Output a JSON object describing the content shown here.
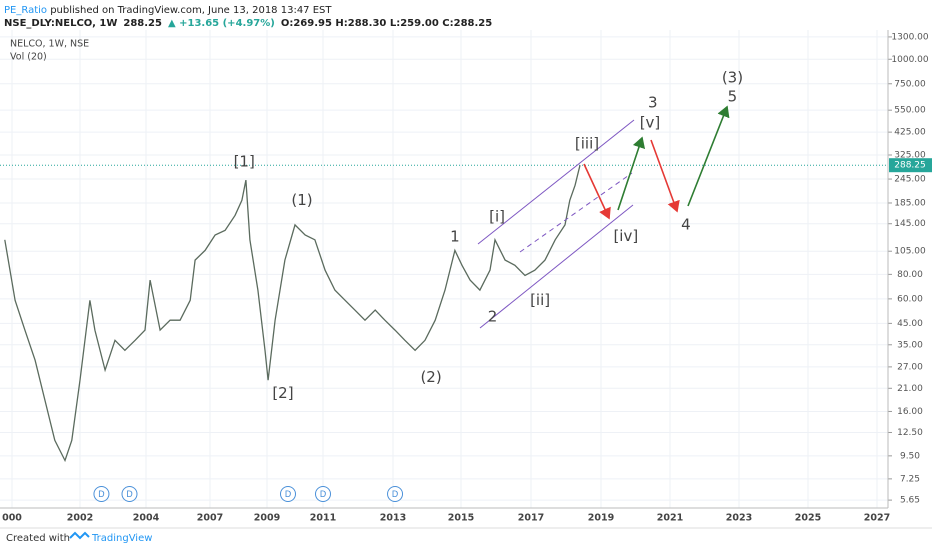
{
  "header": {
    "author": "PE_Ratio",
    "published": " published on TradingView.com, June 13, 2018 13:47 EST",
    "symbol": "NSE_DLY:NELCO, 1W",
    "change": "▲ +13.65 (+4.97%)",
    "ohlc": "O:269.95 H:288.30 L:259.00 C:288.25"
  },
  "footer": {
    "created": "Created with",
    "brand": "TradingView"
  },
  "chart_data": {
    "type": "line",
    "pane_title": "NELCO, 1W, NSE",
    "volume_label": "Vol (20)",
    "log_scale": true,
    "grid": true,
    "color": "#5b6b5e",
    "last_price": 288.25,
    "last_price_color": "#26a69a",
    "x": [
      1999.79,
      2000.09,
      2000.38,
      2000.68,
      2000.97,
      2001.26,
      2001.56,
      2001.76,
      2002.0,
      2002.3,
      2002.45,
      2002.76,
      2003.06,
      2003.36,
      2003.67,
      2003.97,
      2004.19,
      2004.66,
      2005.13,
      2005.6,
      2006.07,
      2006.3,
      2006.77,
      2007.18,
      2007.53,
      2007.88,
      2008.12,
      2008.26,
      2008.4,
      2008.68,
      2008.93,
      2009.04,
      2009.29,
      2009.64,
      2010.0,
      2010.36,
      2010.71,
      2011.06,
      2011.34,
      2011.63,
      2011.91,
      2012.2,
      2012.49,
      2012.77,
      2013.06,
      2013.35,
      2013.65,
      2013.94,
      2014.24,
      2014.53,
      2014.82,
      2015.03,
      2015.26,
      2015.54,
      2015.83,
      2015.97,
      2016.26,
      2016.54,
      2016.83,
      2017.11,
      2017.4,
      2017.69,
      2017.97,
      2018.11,
      2018.26,
      2018.4
    ],
    "values": [
      120,
      59,
      41.6,
      29.2,
      18.2,
      11.4,
      9.0,
      11.4,
      23.1,
      59,
      41.6,
      26,
      36.9,
      32.8,
      36.9,
      41.6,
      74.8,
      41.6,
      46.7,
      46.7,
      59,
      94.6,
      106,
      127,
      134,
      160,
      191,
      242,
      120,
      66.5,
      32.8,
      23.1,
      46.7,
      94.6,
      143,
      127,
      120,
      84,
      66.5,
      59,
      52.6,
      46.7,
      52.6,
      46.7,
      41.6,
      36.9,
      32.8,
      36.9,
      46.7,
      66.5,
      106,
      89,
      74.8,
      66.5,
      84,
      120,
      94.6,
      89,
      79,
      84,
      94.6,
      120,
      143,
      191,
      228,
      288.25
    ],
    "xlim": [
      1999.65,
      2027.3
    ],
    "xticks": [
      {
        "value": 2000,
        "label": "000"
      },
      2002,
      2004,
      2007,
      2009,
      2011,
      2013,
      2015,
      2017,
      2019,
      2021,
      2023,
      2025,
      2027
    ],
    "ylim": [
      5.15,
      1410
    ],
    "yticks": [
      {
        "value": 1300,
        "label": "1300.00"
      },
      {
        "value": 1000,
        "label": "1000.00"
      },
      {
        "value": 750,
        "label": "750.00"
      },
      {
        "value": 550,
        "label": "550.00"
      },
      {
        "value": 425,
        "label": "425.00"
      },
      {
        "value": 325,
        "label": "325.00"
      },
      {
        "value": 245,
        "label": "245.00"
      },
      {
        "value": 185,
        "label": "185.00"
      },
      {
        "value": 145,
        "label": "145.00"
      },
      {
        "value": 105,
        "label": "105.00"
      },
      {
        "value": 80,
        "label": "80.00"
      },
      {
        "value": 60,
        "label": "60.00"
      },
      {
        "value": 45,
        "label": "45.00"
      },
      {
        "value": 35,
        "label": "35.00"
      },
      {
        "value": 27,
        "label": "27.00"
      },
      {
        "value": 21,
        "label": "21.00"
      },
      {
        "value": 16,
        "label": "16.00"
      },
      {
        "value": 12.5,
        "label": "12.50"
      },
      {
        "value": 9.5,
        "label": "9.50"
      },
      7.25,
      5.65
    ],
    "dividend_label": "D",
    "dividends": [
      2002.65,
      2003.5,
      2009.75,
      2011.0,
      2013.06
    ],
    "annotations": [
      {
        "text": "[1]",
        "x": 2008.2,
        "y": 299
      },
      {
        "text": "(1)",
        "x": 2010.25,
        "y": 191
      },
      {
        "text": "[2]",
        "x": 2009.57,
        "y": 19.8
      },
      {
        "text": "1",
        "x": 2014.82,
        "y": 124
      },
      {
        "text": "(2)",
        "x": 2014.12,
        "y": 23.9
      },
      {
        "text": "[i]",
        "x": 2016.03,
        "y": 157
      },
      {
        "text": "2",
        "x": 2015.9,
        "y": 48.4
      },
      {
        "text": "[ii]",
        "x": 2017.26,
        "y": 59
      },
      {
        "text": "[iii]",
        "x": 2018.6,
        "y": 370
      },
      {
        "text": "[iv]",
        "x": 2019.72,
        "y": 125
      },
      {
        "text": "[v]",
        "x": 2020.42,
        "y": 473
      },
      {
        "text": "3",
        "x": 2020.5,
        "y": 598
      },
      {
        "text": "4",
        "x": 2021.46,
        "y": 143
      },
      {
        "text": "(3)",
        "x": 2022.81,
        "y": 803
      },
      {
        "text": "5",
        "x": 2022.81,
        "y": 642
      }
    ]
  }
}
